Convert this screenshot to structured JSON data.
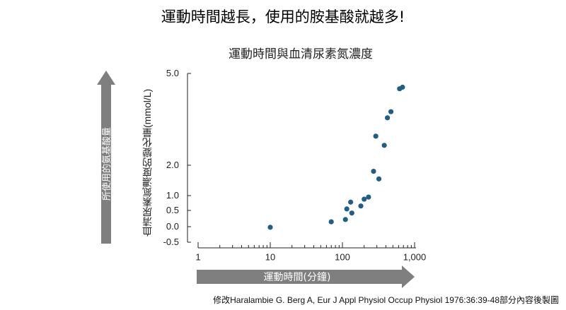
{
  "slide": {
    "title": "運動時間越長，使用的胺基酸就越多!",
    "caption": "修改Haralambie G. Berg A, Eur J Appl Physiol Occup Physiol 1976:36:39-48部分內容後製圖"
  },
  "arrows": {
    "vertical_label": "所使用的氨基酸量",
    "horizontal_label": "運動時間(分鐘)",
    "color": "#7f7f7f"
  },
  "chart_data": {
    "type": "scatter",
    "title": "運動時間與血清尿素氮濃度",
    "xlabel": "",
    "ylabel": "血清尿素氮濃度的變化量(mmol/L)",
    "x_scale": "log",
    "xlim": [
      1,
      1000
    ],
    "ylim": [
      -0.5,
      5.0
    ],
    "x_ticks": [
      {
        "value": 1,
        "label": "1"
      },
      {
        "value": 10,
        "label": "10"
      },
      {
        "value": 100,
        "label": "100"
      },
      {
        "value": 1000,
        "label": "1,000"
      }
    ],
    "y_ticks": [
      {
        "value": -0.5,
        "label": "-0.5"
      },
      {
        "value": 0.0,
        "label": "0.0"
      },
      {
        "value": 0.5,
        "label": "0.5"
      },
      {
        "value": 1.0,
        "label": "1.0"
      },
      {
        "value": 2.0,
        "label": "2.0"
      },
      {
        "value": 5.0,
        "label": "5.0"
      }
    ],
    "point_color": "#1f5f86",
    "points": [
      {
        "x": 10,
        "y": -0.02
      },
      {
        "x": 70,
        "y": 0.15
      },
      {
        "x": 110,
        "y": 0.22
      },
      {
        "x": 115,
        "y": 0.55
      },
      {
        "x": 130,
        "y": 0.78
      },
      {
        "x": 135,
        "y": 0.42
      },
      {
        "x": 180,
        "y": 0.65
      },
      {
        "x": 200,
        "y": 0.88
      },
      {
        "x": 230,
        "y": 0.95
      },
      {
        "x": 270,
        "y": 1.8
      },
      {
        "x": 290,
        "y": 2.95
      },
      {
        "x": 320,
        "y": 1.55
      },
      {
        "x": 380,
        "y": 2.65
      },
      {
        "x": 420,
        "y": 3.55
      },
      {
        "x": 470,
        "y": 3.75
      },
      {
        "x": 620,
        "y": 4.5
      },
      {
        "x": 680,
        "y": 4.55
      }
    ]
  }
}
